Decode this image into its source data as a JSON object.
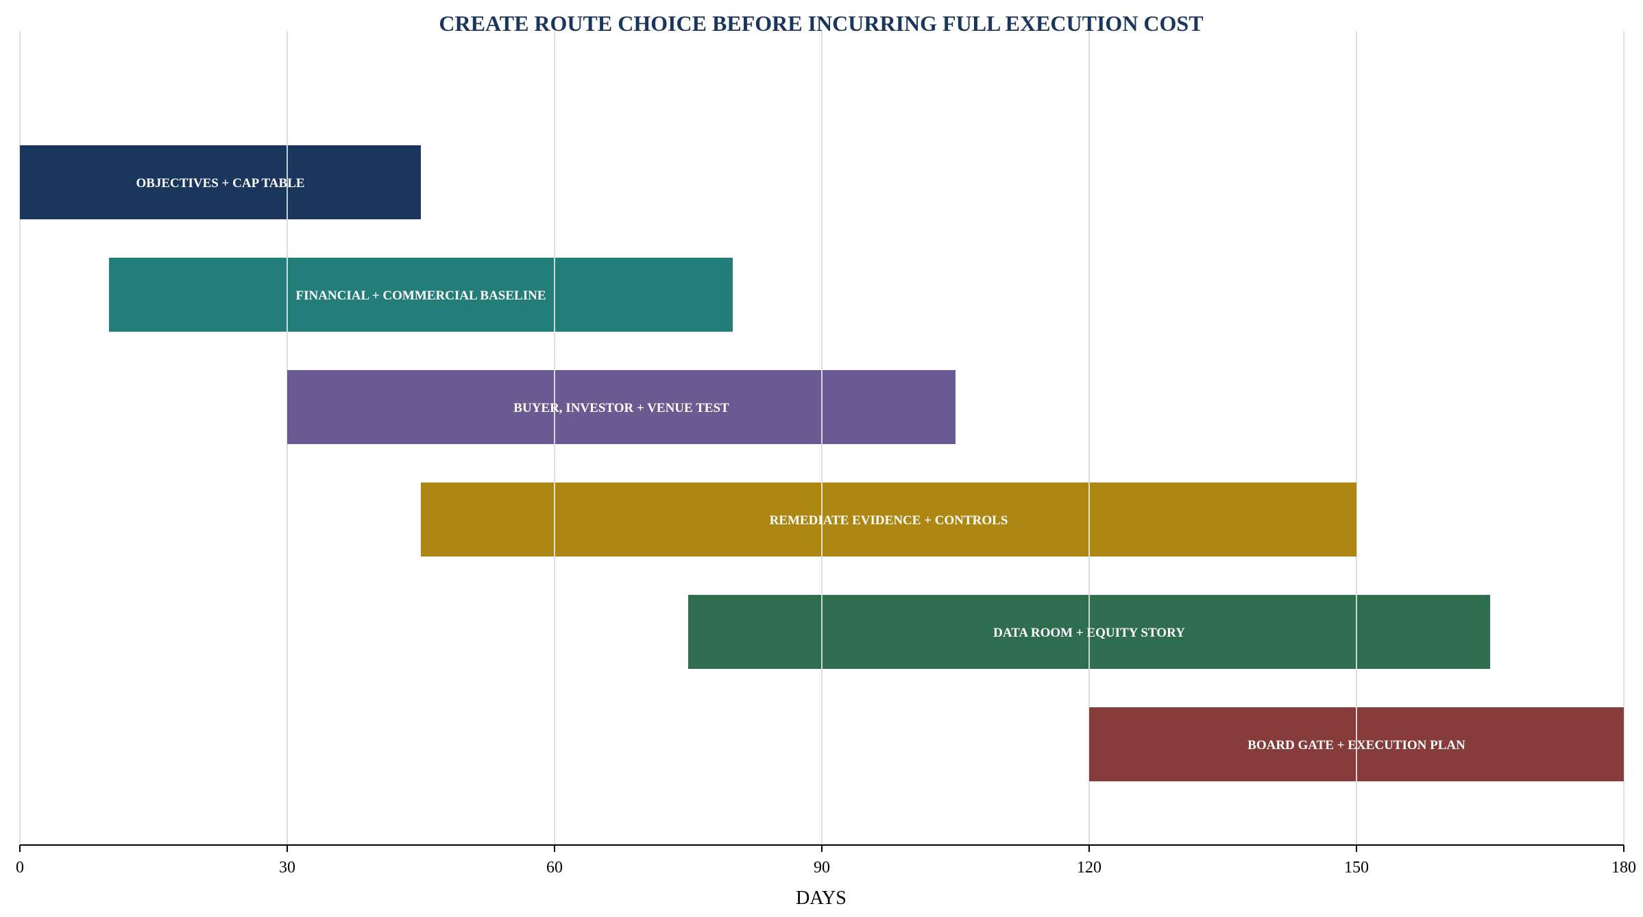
{
  "chart_data": {
    "type": "gantt",
    "title": "CREATE ROUTE CHOICE BEFORE INCURRING FULL EXECUTION COST",
    "xlabel": "DAYS",
    "ylabel": "",
    "xlim": [
      0,
      180
    ],
    "xticks": [
      0,
      30,
      60,
      90,
      120,
      150,
      180
    ],
    "xtick_labels": [
      "0",
      "30",
      "60",
      "90",
      "120",
      "150",
      "180"
    ],
    "grid": "vertical",
    "legend": "none",
    "tasks": [
      {
        "label": "OBJECTIVES + CAP TABLE",
        "start": 0,
        "end": 45,
        "color": "#1b365d"
      },
      {
        "label": "FINANCIAL + COMMERCIAL BASELINE",
        "start": 10,
        "end": 80,
        "color": "#237e79"
      },
      {
        "label": "BUYER, INVESTOR + VENUE TEST",
        "start": 30,
        "end": 105,
        "color": "#695b91"
      },
      {
        "label": "REMEDIATE EVIDENCE + CONTROLS",
        "start": 45,
        "end": 150,
        "color": "#ae8713"
      },
      {
        "label": "DATA ROOM + EQUITY STORY",
        "start": 75,
        "end": 165,
        "color": "#2e6e4f"
      },
      {
        "label": "BOARD GATE + EXECUTION PLAN",
        "start": 120,
        "end": 180,
        "color": "#873c3c"
      }
    ],
    "colors": {
      "title": "#1b365d",
      "grid": "#d4d4de",
      "grid_over_bars": "#ffffff",
      "axis": "#000000",
      "bar_text": "#ffffff"
    }
  }
}
